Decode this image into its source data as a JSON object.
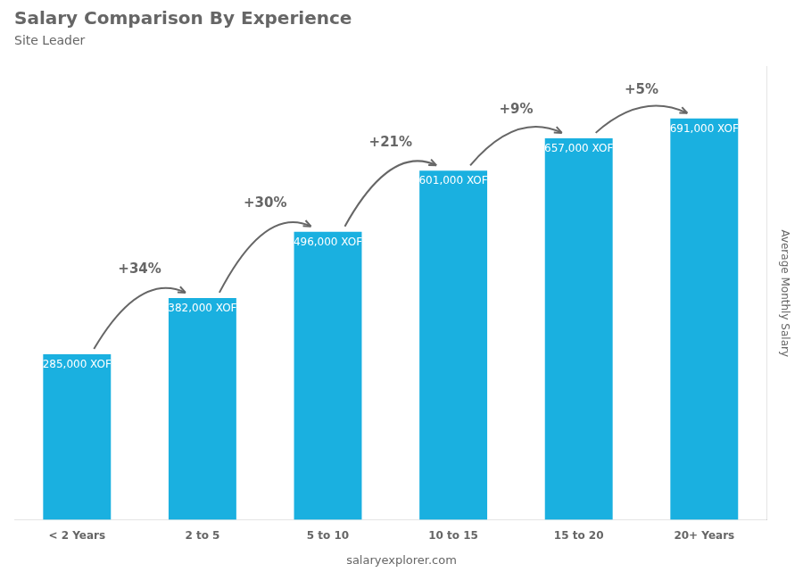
{
  "chart_data": {
    "type": "bar",
    "title": "Salary Comparison By Experience",
    "subtitle": "Site Leader",
    "categories": [
      "< 2 Years",
      "2 to 5",
      "5 to 10",
      "10 to 15",
      "15 to 20",
      "20+ Years"
    ],
    "values": [
      285000,
      382000,
      496000,
      601000,
      657000,
      691000
    ],
    "value_labels": [
      "285,000 XOF",
      "382,000 XOF",
      "496,000 XOF",
      "601,000 XOF",
      "657,000 XOF",
      "691,000 XOF"
    ],
    "data_labels": true,
    "color": "#1ab0e0",
    "ylabel": "Average Monthly Salary",
    "ylim": [
      0,
      780000
    ],
    "yticks": [],
    "tick_labels": "x",
    "grid": false,
    "annotations": [
      "+34%",
      "+30%",
      "+21%",
      "+9%",
      "+5%"
    ],
    "footer": "salaryexplorer.com"
  }
}
